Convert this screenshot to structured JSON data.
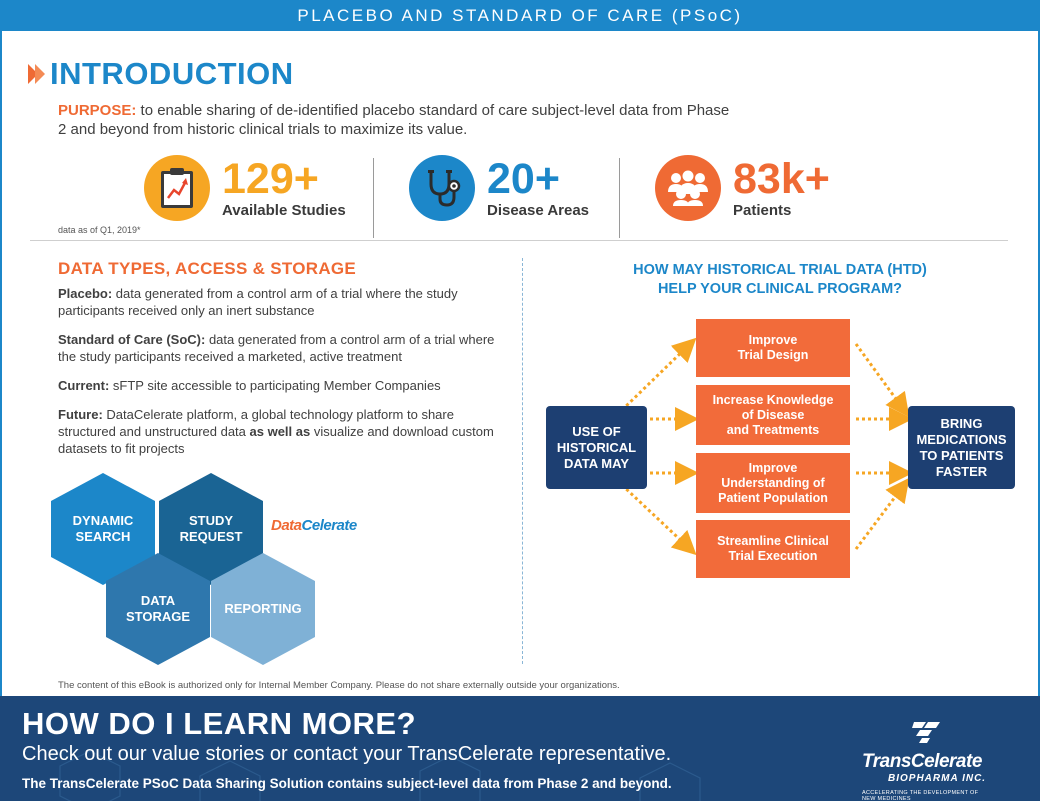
{
  "header": {
    "title": "PLACEBO AND STANDARD OF CARE (PSoC)"
  },
  "intro": {
    "title": "INTRODUCTION",
    "purpose_label": "PURPOSE:",
    "purpose_text": " to enable sharing of de-identified placebo standard of care subject-level data from Phase 2 and beyond from historic clinical trials to maximize its value."
  },
  "stats": [
    {
      "value": "129+",
      "label": "Available Studies",
      "icon": "clipboard-chart-icon",
      "color": "#f6a623"
    },
    {
      "value": "20+",
      "label": "Disease Areas",
      "icon": "stethoscope-icon",
      "color": "#1c87c9"
    },
    {
      "value": "83k+",
      "label": "Patients",
      "icon": "people-group-icon",
      "color": "#ef6a34"
    }
  ],
  "stats_note": "data as of Q1, 2019*",
  "data_types": {
    "heading": "DATA TYPES, ACCESS & STORAGE",
    "placebo_label": "Placebo:",
    "placebo_text": " data generated from a control arm of a trial where the study participants received only an inert substance",
    "soc_label": "Standard of Care (SoC):",
    "soc_text": " data generated from a control arm of a trial where the study participants received a marketed, active treatment",
    "current_label": "Current:",
    "current_text": " sFTP site accessible to participating Member Companies",
    "future_label": "Future:",
    "future_text_1": " DataCelerate platform, a global technology platform to share structured and unstructured data ",
    "future_bold": "as well as",
    "future_text_2": " visualize and download custom datasets to fit projects"
  },
  "hexagons": [
    {
      "label_1": "DYNAMIC",
      "label_2": "SEARCH",
      "color": "#1c87c9"
    },
    {
      "label_1": "STUDY",
      "label_2": "REQUEST",
      "color": "#1a6494"
    },
    {
      "label_1": "DATA",
      "label_2": "STORAGE",
      "color": "#2e77ad"
    },
    {
      "label_1": "REPORTING",
      "label_2": "",
      "color": "#7fb1d6"
    }
  ],
  "datacelerate_logo": {
    "part_1": "Data",
    "part_2": "Celerate"
  },
  "htd": {
    "heading_1": "HOW MAY HISTORICAL TRIAL DATA (HTD)",
    "heading_2": "HELP YOUR CLINICAL PROGRAM?",
    "left_box": [
      "USE OF",
      "HISTORICAL",
      "DATA MAY"
    ],
    "right_box": [
      "BRING",
      "MEDICATIONS",
      "TO PATIENTS",
      "FASTER"
    ],
    "benefits": [
      [
        "Improve",
        "Trial Design"
      ],
      [
        "Increase Knowledge",
        "of Disease",
        "and Treatments"
      ],
      [
        "Improve",
        "Understanding of",
        "Patient Population"
      ],
      [
        "Streamline Clinical",
        "Trial Execution"
      ]
    ]
  },
  "disclaimer": "The content of this eBook is authorized only for Internal Member Company. Please do not share externally outside your organizations.",
  "footer": {
    "title": "HOW DO I LEARN MORE?",
    "subtitle": "Check out our value stories or contact your TransCelerate representative.",
    "small": "The TransCelerate PSoC Data Sharing Solution contains subject-level data from Phase 2 and beyond.",
    "logo_name": "TransCelerate",
    "logo_sub": "BIOPHARMA INC.",
    "logo_tag": "ACCELERATING THE DEVELOPMENT OF NEW MEDICINES"
  }
}
